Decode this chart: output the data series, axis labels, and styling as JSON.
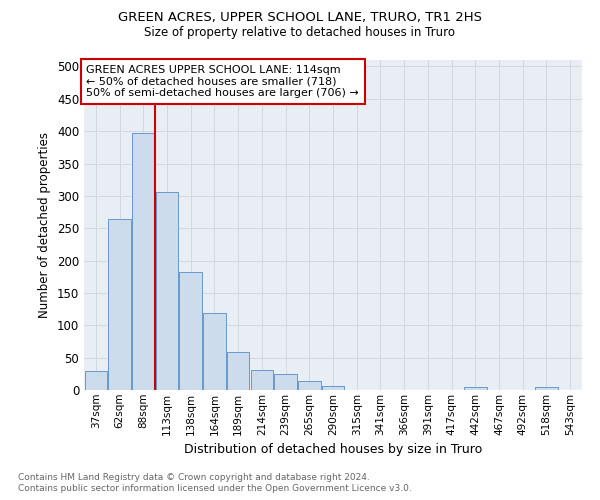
{
  "title": "GREEN ACRES, UPPER SCHOOL LANE, TRURO, TR1 2HS",
  "subtitle": "Size of property relative to detached houses in Truro",
  "xlabel": "Distribution of detached houses by size in Truro",
  "ylabel": "Number of detached properties",
  "bins": [
    "37sqm",
    "62sqm",
    "88sqm",
    "113sqm",
    "138sqm",
    "164sqm",
    "189sqm",
    "214sqm",
    "239sqm",
    "265sqm",
    "290sqm",
    "315sqm",
    "341sqm",
    "366sqm",
    "391sqm",
    "417sqm",
    "442sqm",
    "467sqm",
    "492sqm",
    "518sqm",
    "543sqm"
  ],
  "values": [
    29,
    264,
    397,
    306,
    182,
    119,
    59,
    31,
    25,
    14,
    6,
    0,
    0,
    0,
    0,
    0,
    5,
    0,
    0,
    4,
    0
  ],
  "bar_color": "#ccdcec",
  "bar_edge_color": "#6699cc",
  "grid_color": "#d0d8e0",
  "vline_color": "#cc0000",
  "annotation_text": "GREEN ACRES UPPER SCHOOL LANE: 114sqm\n← 50% of detached houses are smaller (718)\n50% of semi-detached houses are larger (706) →",
  "annotation_box_color": "white",
  "annotation_box_edge_color": "#cc0000",
  "ylim": [
    0,
    510
  ],
  "yticks": [
    0,
    50,
    100,
    150,
    200,
    250,
    300,
    350,
    400,
    450,
    500
  ],
  "footnote_line1": "Contains HM Land Registry data © Crown copyright and database right 2024.",
  "footnote_line2": "Contains public sector information licensed under the Open Government Licence v3.0.",
  "bg_color": "#e8eef4"
}
